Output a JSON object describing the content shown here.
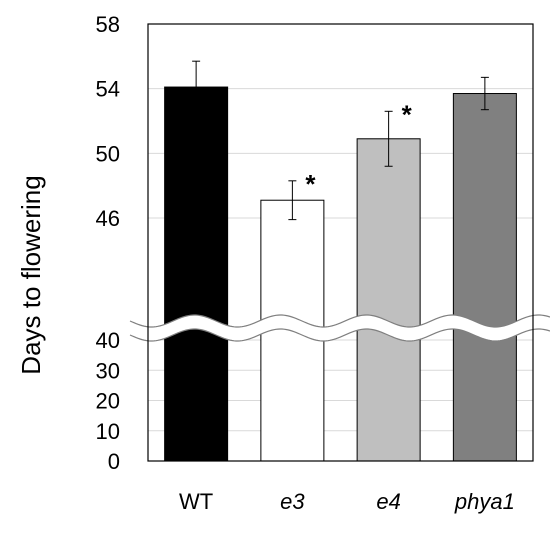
{
  "chart_data": {
    "type": "bar",
    "categories": [
      "WT",
      "e3",
      "e4",
      "phya1"
    ],
    "category_style": [
      "normal",
      "italic",
      "italic",
      "italic"
    ],
    "values": [
      54.1,
      47.1,
      50.9,
      53.7
    ],
    "errors": [
      1.6,
      1.2,
      1.7,
      1.0
    ],
    "significance": [
      "",
      "*",
      "*",
      ""
    ],
    "bar_colors": [
      "#000000",
      "#ffffff",
      "#bfbfbf",
      "#808080"
    ],
    "ylabel": "Days to flowering",
    "xlabel": "",
    "title": "",
    "axis_break": true,
    "upper_segment": {
      "ylim": [
        40,
        58
      ],
      "ticks": [
        58,
        54,
        50,
        46
      ]
    },
    "lower_segment": {
      "ylim": [
        0,
        40
      ],
      "ticks": [
        40,
        30,
        20,
        10,
        0
      ]
    },
    "grid": true
  }
}
